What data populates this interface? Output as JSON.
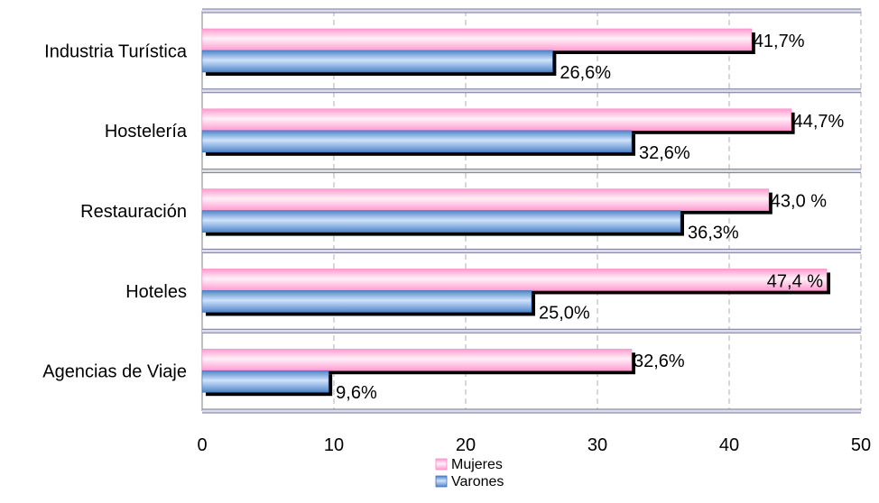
{
  "chart_data": {
    "type": "bar",
    "orientation": "horizontal",
    "categories": [
      "Industria Turística",
      "Hostelería",
      "Restauración",
      "Hoteles",
      "Agencias de Viaje"
    ],
    "series": [
      {
        "name": "Mujeres",
        "values": [
          41.7,
          44.7,
          43.0,
          47.4,
          32.6
        ],
        "labels": [
          "41,7%",
          "44,7%",
          "43,0 %",
          "47,4 %",
          "32,6%"
        ]
      },
      {
        "name": "Varones",
        "values": [
          26.6,
          32.6,
          36.3,
          25.0,
          9.6
        ],
        "labels": [
          "26,6%",
          "32,6%",
          "36,3%",
          "25,0%",
          "9,6%"
        ]
      }
    ],
    "xticks": [
      "0",
      "10",
      "20",
      "30",
      "40",
      "50"
    ],
    "xlim": [
      0,
      50
    ],
    "xlabel": "",
    "ylabel": "",
    "grid": "vertical dashed",
    "legend_position": "bottom",
    "colors": {
      "Mujeres": "#ffb3dc",
      "Varones": "#7fa9e0",
      "shadow": "#000000",
      "separator": "#7777a0",
      "grid": "#b0b0b0"
    }
  }
}
